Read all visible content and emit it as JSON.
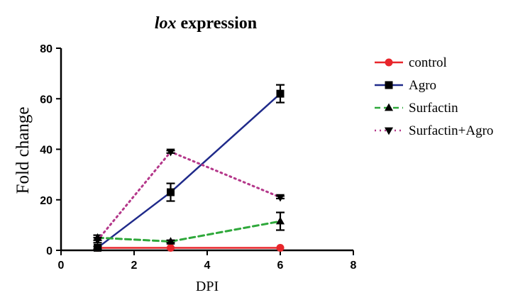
{
  "chart_data": {
    "type": "line",
    "title_prefix": "lox",
    "title_rest": " expression",
    "xlabel": "DPI",
    "ylabel": "Fold change",
    "xlim": [
      0,
      8
    ],
    "ylim": [
      0,
      80
    ],
    "xticks": [
      0,
      2,
      4,
      6,
      8
    ],
    "yticks": [
      0,
      20,
      40,
      60,
      80
    ],
    "legend_position": "right",
    "grid": false,
    "series": [
      {
        "name": "control",
        "color": "#e8262b",
        "marker": "circle",
        "dash": "solid",
        "x": [
          1,
          3,
          6
        ],
        "y": [
          1,
          1,
          1
        ],
        "err": [
          0,
          0,
          0
        ]
      },
      {
        "name": "Agro",
        "color": "#1f2a8a",
        "marker": "square",
        "dash": "solid",
        "x": [
          1,
          3,
          6
        ],
        "y": [
          1,
          23,
          62
        ],
        "err": [
          0.5,
          3.5,
          3.5
        ]
      },
      {
        "name": "Surfactin",
        "color": "#2ea83a",
        "marker": "triangle-up",
        "dash": "dashed",
        "x": [
          1,
          3,
          6
        ],
        "y": [
          5,
          3.5,
          11.5
        ],
        "err": [
          1,
          0.5,
          3.5
        ]
      },
      {
        "name": "Surfactin+Agro",
        "color": "#b4378a",
        "marker": "triangle-down",
        "dash": "dotted",
        "x": [
          1,
          3,
          6
        ],
        "y": [
          4,
          39,
          21
        ],
        "err": [
          1,
          0.5,
          0.5
        ]
      }
    ]
  }
}
